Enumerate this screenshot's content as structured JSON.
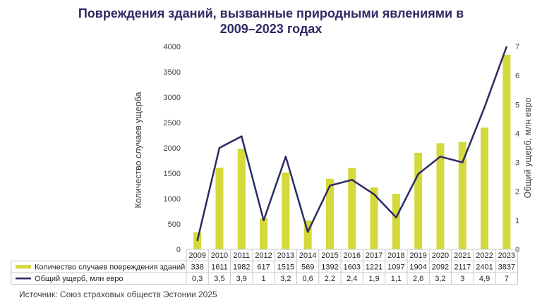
{
  "chart_data": {
    "type": "bar+line",
    "title": "Повреждения зданий, вызванные природными явлениями в 2009–2023 годах",
    "title_lines": [
      "Повреждения зданий, вызванные природными явлениями в",
      "2009–2023 годах"
    ],
    "categories": [
      "2009",
      "2010",
      "2011",
      "2012",
      "2013",
      "2014",
      "2015",
      "2016",
      "2017",
      "2018",
      "2019",
      "2020",
      "2021",
      "2022",
      "2023"
    ],
    "series": [
      {
        "name": "Количество случаев повреждения зданий",
        "type": "bar",
        "axis": "left",
        "color": "#d4d93c",
        "values": [
          338,
          1611,
          1982,
          617,
          1515,
          569,
          1392,
          1603,
          1221,
          1097,
          1904,
          2092,
          2117,
          2401,
          3837
        ],
        "labels": [
          "338",
          "1611",
          "1982",
          "617",
          "1515",
          "569",
          "1392",
          "1603",
          "1221",
          "1097",
          "1904",
          "2092",
          "2117",
          "2401",
          "3837"
        ]
      },
      {
        "name": "Общий ущерб, млн евро",
        "type": "line",
        "axis": "right",
        "color": "#2e2a63",
        "values": [
          0.3,
          3.5,
          3.9,
          1,
          3.2,
          0.6,
          2.2,
          2.4,
          1.9,
          1.1,
          2.6,
          3.2,
          3,
          4.9,
          7
        ],
        "labels": [
          "0,3",
          "3,5",
          "3,9",
          "1",
          "3,2",
          "0,6",
          "2,2",
          "2,4",
          "1,9",
          "1,1",
          "2,6",
          "3,2",
          "3",
          "4,9",
          "7"
        ]
      }
    ],
    "ylabel_left": "Количество случаев ущерба",
    "ylabel_right": "Общий ущерб, млн евро",
    "ylim_left": [
      0,
      4000
    ],
    "yticks_left": [
      "0",
      "500",
      "1000",
      "1500",
      "2000",
      "2500",
      "3000",
      "3500",
      "4000"
    ],
    "ylim_right": [
      0,
      7
    ],
    "yticks_right": [
      "0",
      "1",
      "2",
      "3",
      "4",
      "5",
      "6",
      "7"
    ],
    "grid": false,
    "legend_placement": "data-table-left"
  },
  "source": "Источник: Союз страховых обществ Эстонии 2025"
}
